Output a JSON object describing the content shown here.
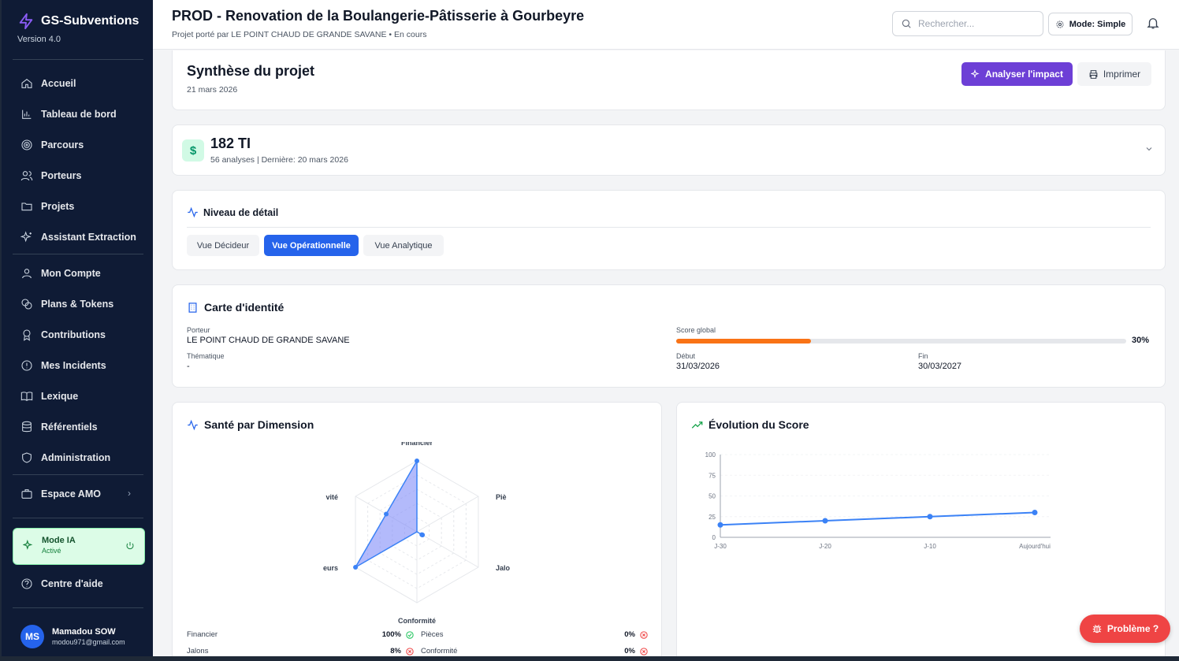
{
  "brand": {
    "title": "GS-Subventions",
    "version": "Version 4.0"
  },
  "nav": {
    "items": [
      {
        "label": "Accueil",
        "icon": "home-icon"
      },
      {
        "label": "Tableau de bord",
        "icon": "bar-chart-icon"
      },
      {
        "label": "Parcours",
        "icon": "target-icon"
      },
      {
        "label": "Porteurs",
        "icon": "users-icon"
      },
      {
        "label": "Projets",
        "icon": "folder-icon"
      },
      {
        "label": "Assistant Extraction",
        "icon": "sparkles-icon"
      },
      {
        "label": "Mon Compte",
        "icon": "user-icon"
      },
      {
        "label": "Plans & Tokens",
        "icon": "coins-icon"
      },
      {
        "label": "Contributions",
        "icon": "award-icon"
      },
      {
        "label": "Mes Incidents",
        "icon": "alert-circle-icon"
      },
      {
        "label": "Lexique",
        "icon": "book-icon"
      },
      {
        "label": "Référentiels",
        "icon": "database-icon"
      },
      {
        "label": "Administration",
        "icon": "shield-icon"
      },
      {
        "label": "Espace AMO",
        "icon": "briefcase-icon"
      },
      {
        "label": "Centre d'aide",
        "icon": "help-circle-icon"
      }
    ],
    "mode_ia": {
      "title": "Mode IA",
      "status": "Activé"
    }
  },
  "user": {
    "initials": "MS",
    "name": "Mamadou SOW",
    "email": "modou971@gmail.com"
  },
  "header": {
    "title": "PROD - Renovation de la Boulangerie-Pâtisserie à Gourbeyre",
    "subtitle": "Projet porté par LE POINT CHAUD DE GRANDE SAVANE • En cours",
    "search_placeholder": "Rechercher...",
    "mode_label": "Mode: Simple"
  },
  "synthese": {
    "title": "Synthèse du projet",
    "date": "21 mars 2026",
    "analyse_label": "Analyser l'impact",
    "print_label": "Imprimer"
  },
  "ti": {
    "value": "182 TI",
    "meta": "56 analyses | Dernière: 20 mars 2026"
  },
  "niveau": {
    "title": "Niveau de détail",
    "views": [
      "Vue Décideur",
      "Vue Opérationnelle",
      "Vue Analytique"
    ],
    "active": "Vue Opérationnelle"
  },
  "carte": {
    "title": "Carte d'identité",
    "porteur_label": "Porteur",
    "porteur_value": "LE POINT CHAUD DE GRANDE SAVANE",
    "thematique_label": "Thématique",
    "thematique_value": "-",
    "score_label": "Score global",
    "score_value": "30%",
    "score_fraction": 0.3,
    "debut_label": "Début",
    "debut_value": "31/03/2026",
    "fin_label": "Fin",
    "fin_value": "30/03/2027"
  },
  "sante": {
    "title": "Santé par Dimension",
    "radar_labels": [
      "Financier",
      "Pièces",
      "Jalons",
      "Conformité",
      "Porteurs",
      "Activité"
    ],
    "radar_labels_visible": [
      "Financier",
      "Piè",
      "Jalo",
      "Conformité",
      "eurs",
      "vité"
    ],
    "values": [
      100,
      0,
      8,
      0,
      100,
      50
    ],
    "rows": [
      {
        "name": "Financier",
        "value": "100%",
        "status": "ok"
      },
      {
        "name": "Pièces",
        "value": "0%",
        "status": "ko"
      },
      {
        "name": "Jalons",
        "value": "8%",
        "status": "ko"
      },
      {
        "name": "Conformité",
        "value": "0%",
        "status": "ko"
      }
    ]
  },
  "evolution": {
    "title": "Évolution du Score"
  },
  "chart_data": {
    "type": "line",
    "x": [
      "J-30",
      "J-20",
      "J-10",
      "Aujourd'hui"
    ],
    "series": [
      {
        "values": [
          15,
          20,
          25,
          30
        ]
      }
    ],
    "ylim": [
      0,
      100
    ],
    "yticks": [
      0,
      25,
      50,
      75,
      100
    ],
    "grid": true,
    "color": "#3b82f6"
  },
  "floating": {
    "probleme_label": "Problème ?"
  },
  "colors": {
    "sidebar": "#0f1b35",
    "accent": "#2563eb",
    "purple": "#6d3fd6",
    "score": "#f97316",
    "danger": "#ef4444"
  }
}
